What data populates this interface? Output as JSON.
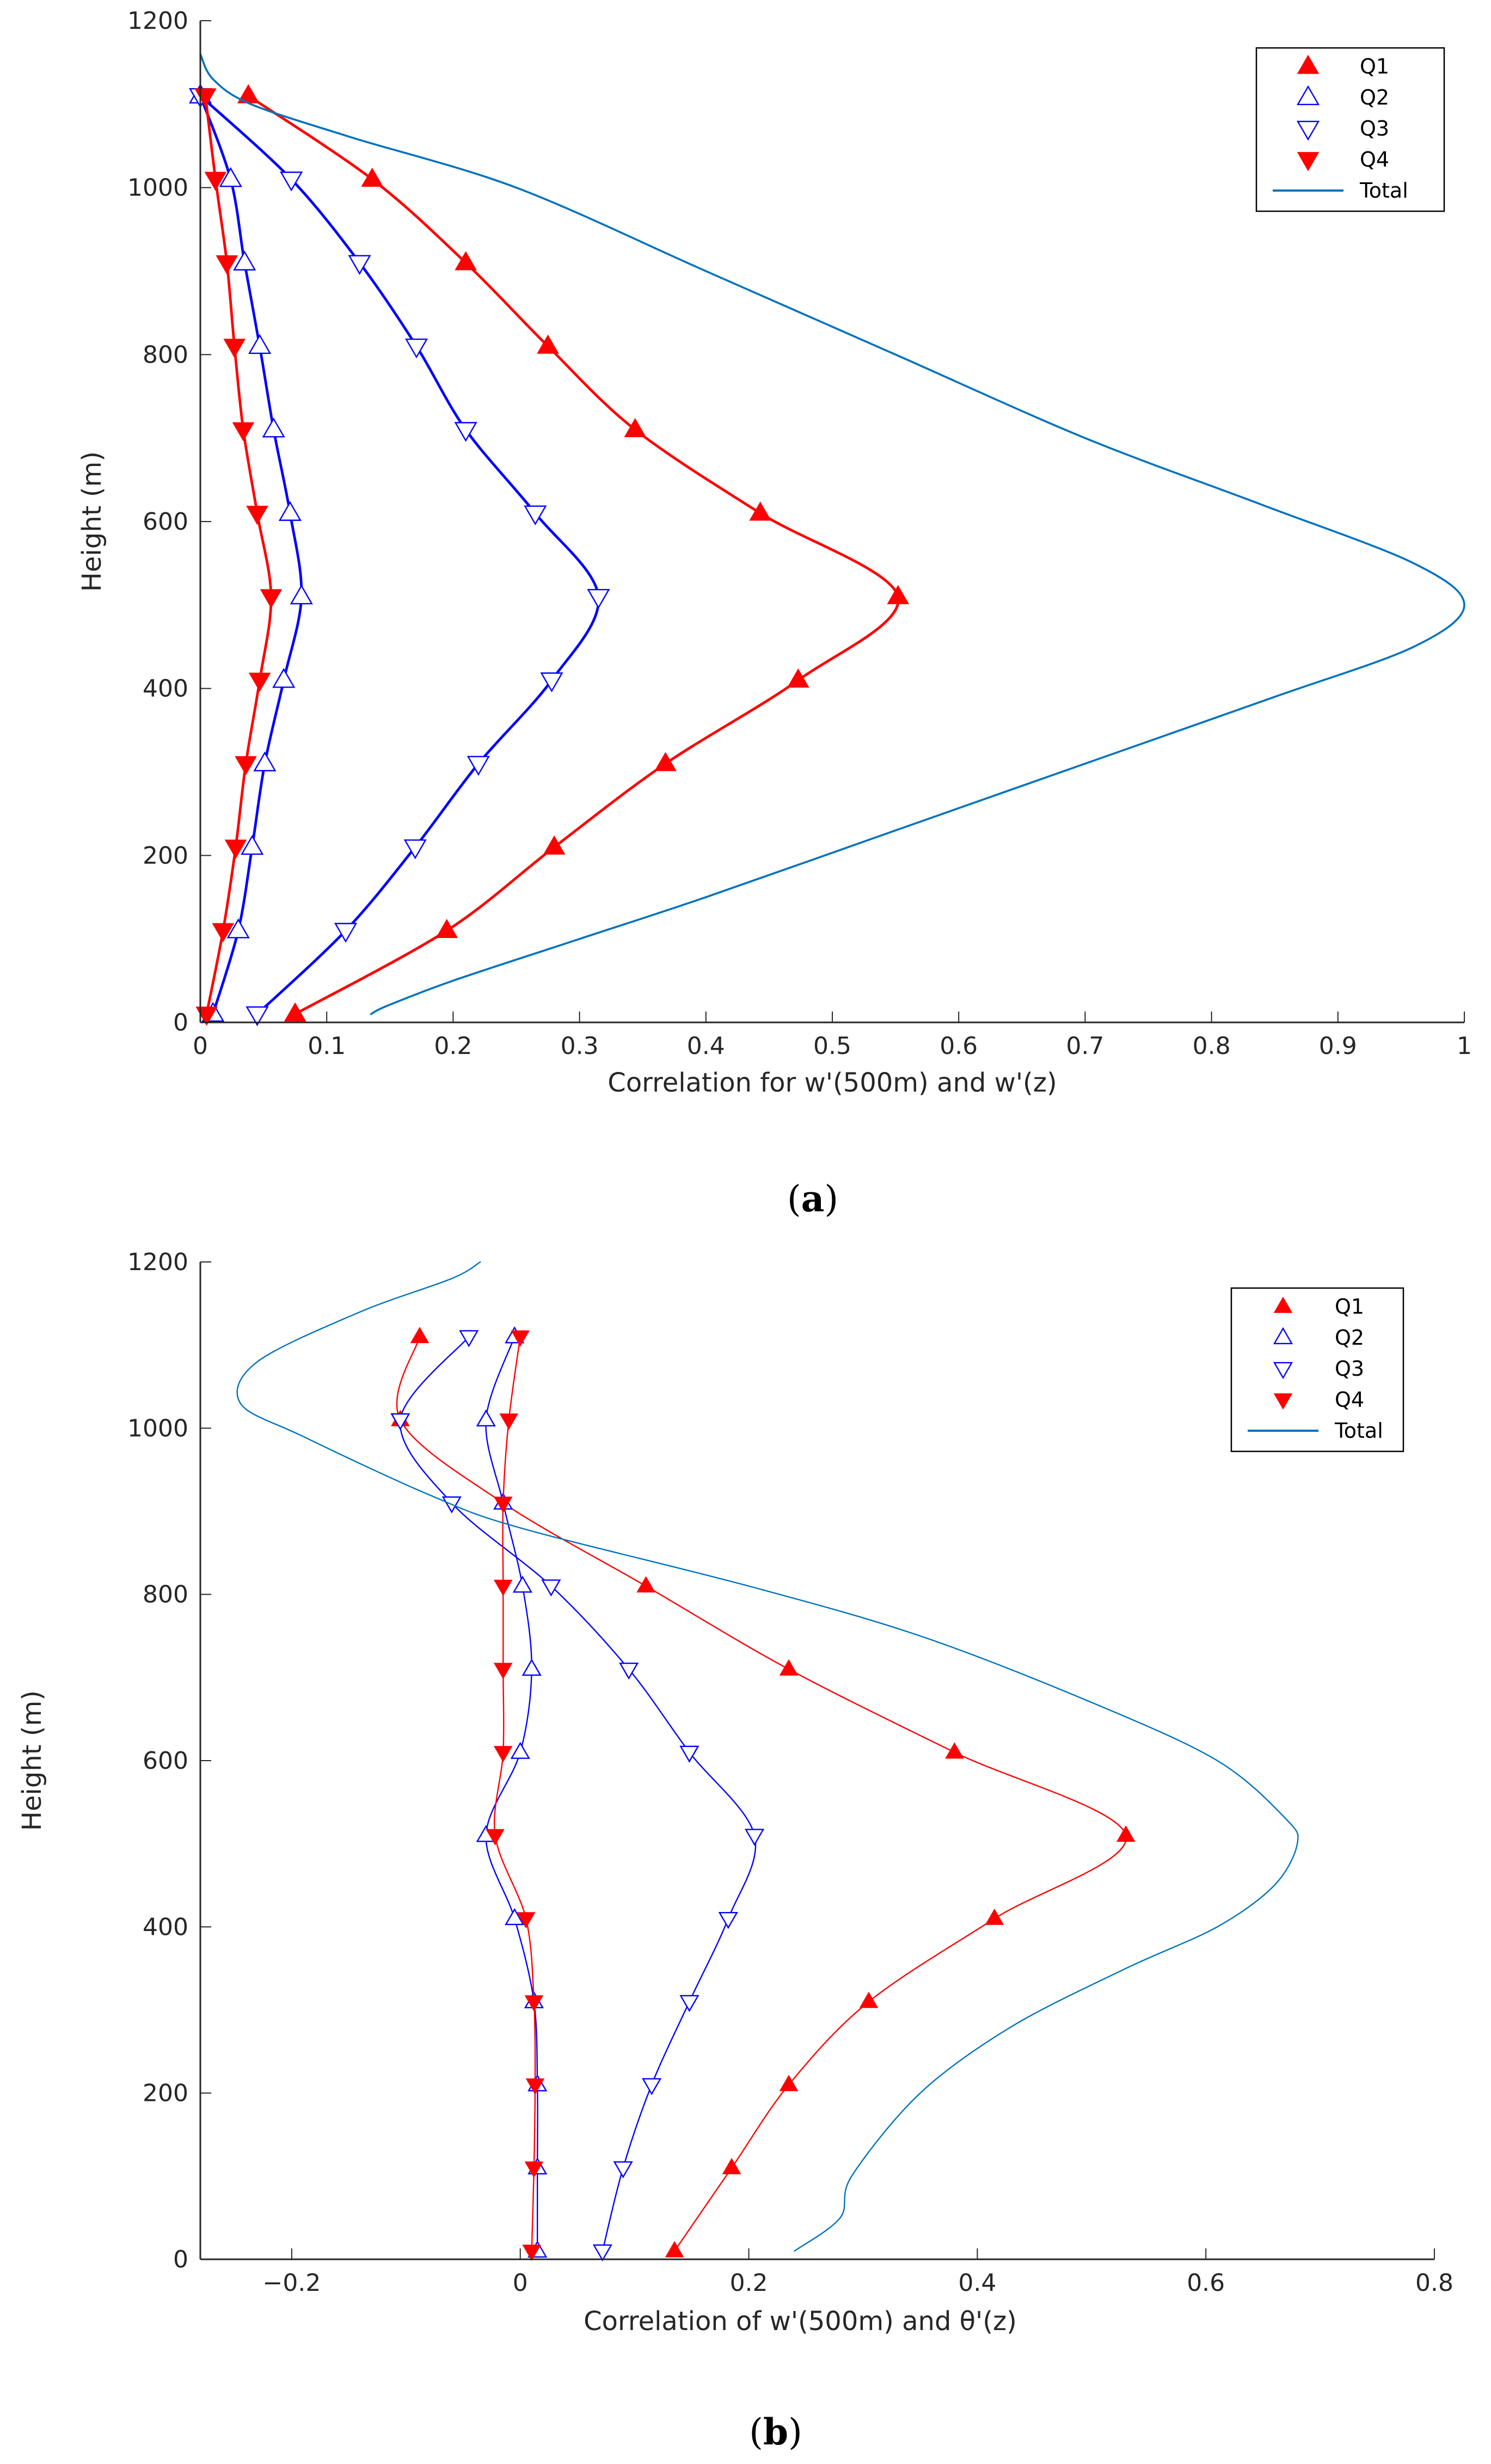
{
  "colors": {
    "q1": "#ff0000",
    "q2": "#0000ff",
    "q3": "#0000ff",
    "q4": "#ff0000",
    "total": "#0072bd",
    "axis": "#262626"
  },
  "chart_data": [
    {
      "id": "a",
      "type": "line",
      "caption_label": "a",
      "xlabel": "Correlation for w'(500m) and w'(z)",
      "ylabel": "Height (m)",
      "xlim": [
        0,
        1
      ],
      "ylim": [
        0,
        1200
      ],
      "xticks": [
        0,
        0.1,
        0.2,
        0.3,
        0.4,
        0.5,
        0.6,
        0.7,
        0.8,
        0.9,
        1
      ],
      "xtick_labels": [
        "0",
        "0.1",
        "0.2",
        "0.3",
        "0.4",
        "0.5",
        "0.6",
        "0.7",
        "0.8",
        "0.9",
        "1"
      ],
      "yticks": [
        0,
        200,
        400,
        600,
        800,
        1000,
        1200
      ],
      "ytick_labels": [
        "0",
        "200",
        "400",
        "600",
        "800",
        "1000",
        "1200"
      ],
      "legend_position": "top-right",
      "series": [
        {
          "name": "Q1",
          "color_key": "q1",
          "marker": "tri-up-filled",
          "line_width": 2,
          "x": [
            0.075,
            0.195,
            0.28,
            0.368,
            0.473,
            0.552,
            0.443,
            0.344,
            0.275,
            0.21,
            0.136,
            0.038
          ],
          "y": [
            10,
            110,
            210,
            310,
            410,
            510,
            610,
            710,
            810,
            910,
            1010,
            1110
          ]
        },
        {
          "name": "Q2",
          "color_key": "q2",
          "marker": "tri-up-open",
          "line_width": 2,
          "x": [
            0.01,
            0.03,
            0.041,
            0.051,
            0.066,
            0.08,
            0.071,
            0.058,
            0.047,
            0.035,
            0.024,
            0.0
          ],
          "y": [
            10,
            110,
            210,
            310,
            410,
            510,
            610,
            710,
            810,
            910,
            1010,
            1110
          ]
        },
        {
          "name": "Q3",
          "color_key": "q3",
          "marker": "tri-down-open",
          "line_width": 2,
          "x": [
            0.045,
            0.115,
            0.17,
            0.22,
            0.278,
            0.315,
            0.265,
            0.21,
            0.171,
            0.126,
            0.072,
            0.0
          ],
          "y": [
            10,
            110,
            210,
            310,
            410,
            510,
            610,
            710,
            810,
            910,
            1010,
            1110
          ]
        },
        {
          "name": "Q4",
          "color_key": "q4",
          "marker": "tri-down-filled",
          "line_width": 2,
          "x": [
            0.005,
            0.018,
            0.028,
            0.036,
            0.047,
            0.056,
            0.045,
            0.034,
            0.027,
            0.021,
            0.012,
            0.004
          ],
          "y": [
            10,
            110,
            210,
            310,
            410,
            510,
            610,
            710,
            810,
            910,
            1010,
            1110
          ]
        },
        {
          "name": "Total",
          "color_key": "total",
          "marker": "none",
          "line_width": 1.5,
          "x": [
            0.135,
            0.148,
            0.2,
            0.3,
            0.4,
            0.55,
            0.7,
            0.85,
            0.96,
            1.0,
            0.96,
            0.84,
            0.7,
            0.55,
            0.4,
            0.25,
            0.12,
            0.04,
            0.01,
            0.0
          ],
          "y": [
            10,
            20,
            50,
            100,
            150,
            230,
            310,
            390,
            450,
            500,
            550,
            620,
            700,
            800,
            900,
            1000,
            1060,
            1100,
            1130,
            1160
          ]
        }
      ]
    },
    {
      "id": "b",
      "type": "line",
      "caption_label": "b",
      "xlabel": "Correlation of w'(500m) and θ'(z)",
      "ylabel": "Height (m)",
      "xlim": [
        -0.28,
        0.8
      ],
      "ylim": [
        0,
        1200
      ],
      "xticks": [
        -0.2,
        0,
        0.2,
        0.4,
        0.6,
        0.8
      ],
      "xtick_labels": [
        "−0.2",
        "0",
        "0.2",
        "0.4",
        "0.6",
        "0.8"
      ],
      "yticks": [
        0,
        200,
        400,
        600,
        800,
        1000,
        1200
      ],
      "ytick_labels": [
        "0",
        "200",
        "400",
        "600",
        "800",
        "1000",
        "1200"
      ],
      "legend_position": "top-right",
      "series": [
        {
          "name": "Q1",
          "color_key": "q1",
          "marker": "tri-up-filled",
          "line_width": 1,
          "x": [
            0.135,
            0.185,
            0.235,
            0.305,
            0.415,
            0.53,
            0.38,
            0.235,
            0.11,
            -0.015,
            -0.105,
            -0.088
          ],
          "y": [
            10,
            110,
            210,
            310,
            410,
            510,
            610,
            710,
            810,
            910,
            1010,
            1110
          ]
        },
        {
          "name": "Q2",
          "color_key": "q2",
          "marker": "tri-up-open",
          "line_width": 1,
          "x": [
            0.015,
            0.015,
            0.015,
            0.012,
            -0.005,
            -0.03,
            0.0,
            0.01,
            0.002,
            -0.015,
            -0.03,
            -0.005
          ],
          "y": [
            10,
            110,
            210,
            310,
            410,
            510,
            610,
            710,
            810,
            910,
            1010,
            1110
          ]
        },
        {
          "name": "Q3",
          "color_key": "q3",
          "marker": "tri-down-open",
          "line_width": 1,
          "x": [
            0.072,
            0.09,
            0.115,
            0.148,
            0.182,
            0.205,
            0.148,
            0.095,
            0.027,
            -0.06,
            -0.105,
            -0.045
          ],
          "y": [
            10,
            110,
            210,
            310,
            410,
            510,
            610,
            710,
            810,
            910,
            1010,
            1110
          ]
        },
        {
          "name": "Q4",
          "color_key": "q4",
          "marker": "tri-down-filled",
          "line_width": 1,
          "x": [
            0.01,
            0.012,
            0.013,
            0.012,
            0.005,
            -0.022,
            -0.015,
            -0.015,
            -0.015,
            -0.015,
            -0.01,
            0.0
          ],
          "y": [
            10,
            110,
            210,
            310,
            410,
            510,
            610,
            710,
            810,
            910,
            1010,
            1110
          ]
        },
        {
          "name": "Total",
          "color_key": "total",
          "marker": "none",
          "line_width": 1,
          "x": [
            0.24,
            0.28,
            0.29,
            0.35,
            0.43,
            0.53,
            0.61,
            0.66,
            0.68,
            0.67,
            0.61,
            0.5,
            0.35,
            0.2,
            0.0,
            -0.08,
            -0.19,
            -0.245,
            -0.23,
            -0.14,
            -0.06,
            -0.035
          ],
          "y": [
            10,
            50,
            100,
            200,
            280,
            350,
            400,
            450,
            500,
            530,
            600,
            670,
            750,
            810,
            880,
            920,
            990,
            1030,
            1080,
            1140,
            1180,
            1200
          ]
        }
      ]
    }
  ]
}
